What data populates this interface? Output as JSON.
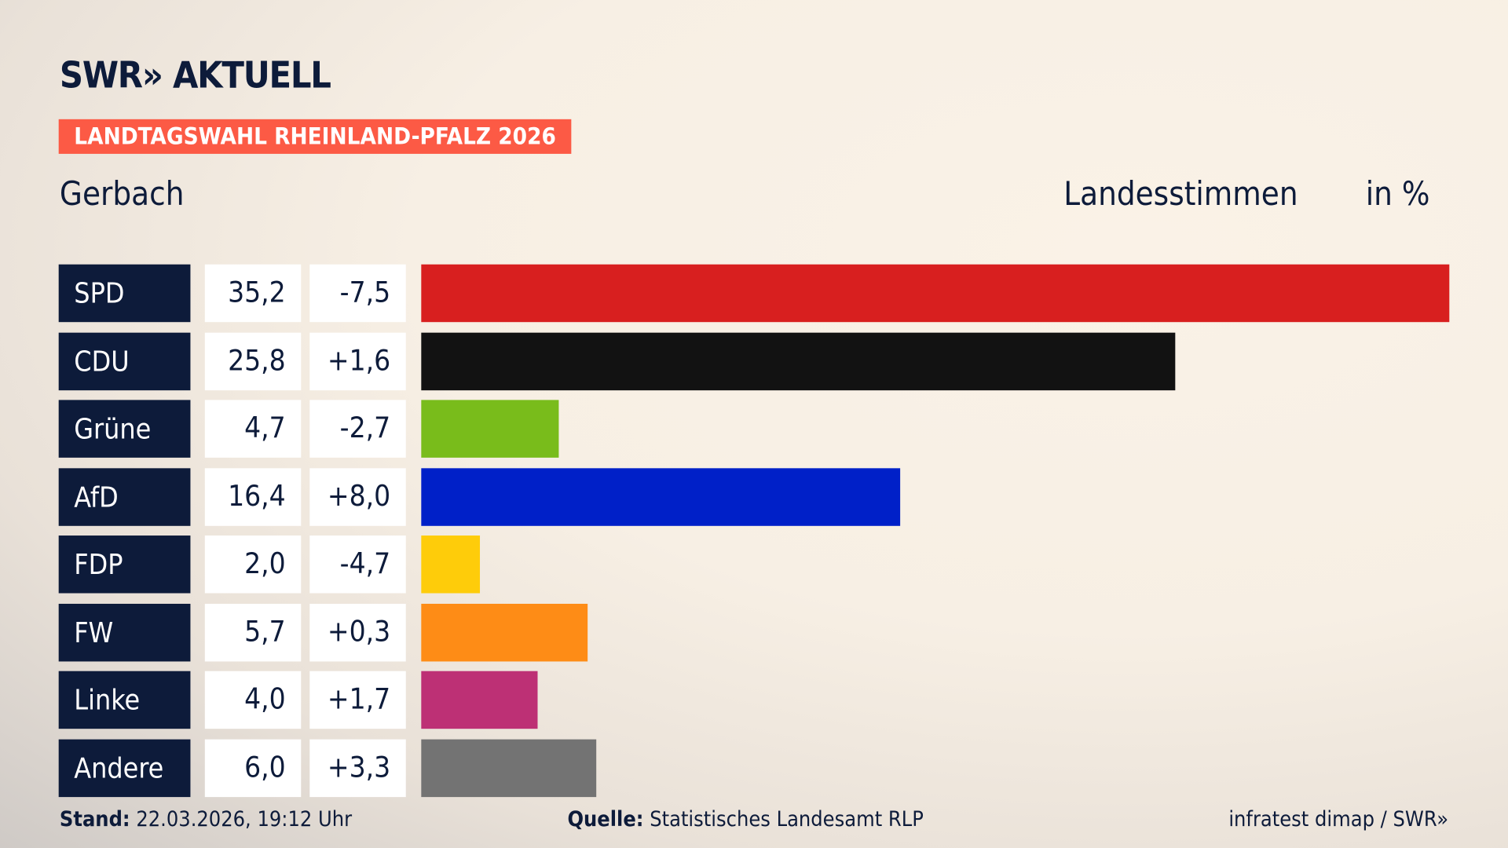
{
  "header": {
    "logo": "SWR» AKTUELL",
    "tag": "LANDTAGSWAHL RHEINLAND-PFALZ 2026",
    "region": "Gerbach",
    "metric": "Landesstimmen",
    "unit": "in %"
  },
  "chart_data": {
    "type": "bar",
    "orientation": "horizontal",
    "categories": [
      "SPD",
      "CDU",
      "Grüne",
      "AfD",
      "FDP",
      "FW",
      "Linke",
      "Andere"
    ],
    "values": [
      35.2,
      25.8,
      4.7,
      16.4,
      2.0,
      5.7,
      4.0,
      6.0
    ],
    "value_labels": [
      "35,2",
      "25,8",
      "4,7",
      "16,4",
      "2,0",
      "5,7",
      "4,0",
      "6,0"
    ],
    "diff_labels": [
      "-7,5",
      "+1,6",
      "-2,7",
      "+8,0",
      "-4,7",
      "+0,3",
      "+1,7",
      "+3,3"
    ],
    "colors": [
      "#d81f1f",
      "#121212",
      "#79bc1b",
      "#0020c8",
      "#fecc0a",
      "#fe8c16",
      "#bd3075",
      "#737373"
    ],
    "xlim": [
      0,
      35.2
    ]
  },
  "footer": {
    "stand_label": "Stand:",
    "stand_value": "22.03.2026, 19:12 Uhr",
    "source_label": "Quelle:",
    "source_value": "Statistisches Landesamt RLP",
    "credit": "infratest dimap / SWR»"
  }
}
